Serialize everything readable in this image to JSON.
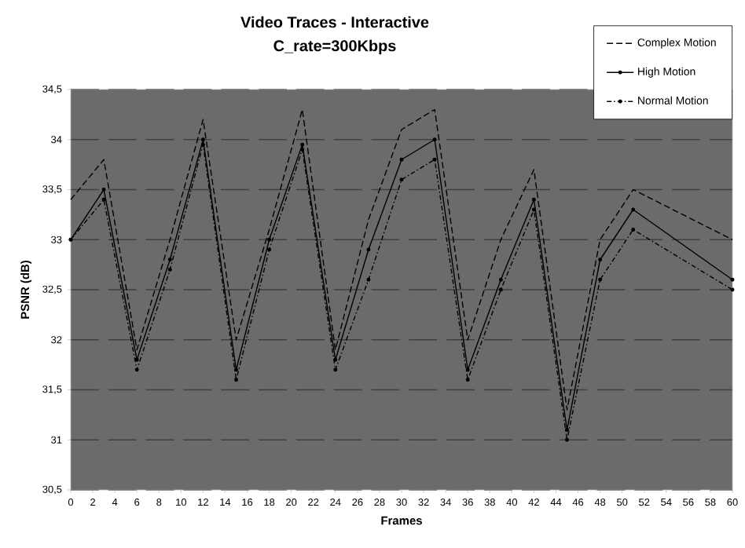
{
  "chart_data": {
    "type": "line",
    "title": "Video Traces - Interactive",
    "subtitle": "C_rate=300Kbps",
    "xlabel": "Frames",
    "ylabel": "PSNR (dB)",
    "x": [
      0,
      3,
      6,
      9,
      12,
      15,
      18,
      21,
      24,
      27,
      30,
      33,
      36,
      39,
      42,
      45,
      48,
      51,
      60
    ],
    "series": [
      {
        "name": "Complex Motion",
        "color": "#000000",
        "line_style": "dashed",
        "marker": "none",
        "values": [
          33.4,
          33.8,
          31.9,
          33.0,
          34.2,
          32.0,
          33.1,
          34.3,
          31.9,
          33.2,
          34.1,
          34.3,
          32.0,
          33.0,
          33.7,
          31.3,
          33.0,
          33.5,
          33.0
        ]
      },
      {
        "name": "High Motion",
        "color": "#000000",
        "line_style": "solid",
        "marker": "circle",
        "values": [
          33.0,
          33.5,
          31.8,
          32.8,
          34.0,
          31.7,
          33.0,
          33.95,
          31.8,
          32.9,
          33.8,
          34.0,
          31.7,
          32.6,
          33.4,
          31.1,
          32.8,
          33.3,
          32.6
        ]
      },
      {
        "name": "Normal Motion",
        "color": "#000000",
        "line_style": "dashdotted",
        "marker": "circle",
        "values": [
          33.0,
          33.4,
          31.7,
          32.7,
          33.95,
          31.6,
          32.9,
          33.9,
          31.7,
          32.6,
          33.6,
          33.8,
          31.6,
          32.5,
          33.3,
          31.0,
          32.6,
          33.1,
          32.5
        ]
      }
    ],
    "xlim": [
      0,
      60
    ],
    "ylim": [
      30.5,
      34.5
    ],
    "xticks": [
      0,
      2,
      4,
      6,
      8,
      10,
      12,
      14,
      16,
      18,
      20,
      22,
      24,
      26,
      28,
      30,
      32,
      34,
      36,
      38,
      40,
      42,
      44,
      46,
      48,
      50,
      52,
      54,
      56,
      58,
      60
    ],
    "yticks": [
      {
        "value": 30.5,
        "label": "30,5"
      },
      {
        "value": 31,
        "label": "31"
      },
      {
        "value": 31.5,
        "label": "31,5"
      },
      {
        "value": 32,
        "label": "32"
      },
      {
        "value": 32.5,
        "label": "32,5"
      },
      {
        "value": 33,
        "label": "33"
      },
      {
        "value": 33.5,
        "label": "33,5"
      },
      {
        "value": 34,
        "label": "34"
      },
      {
        "value": 34.5,
        "label": "34,5"
      }
    ],
    "grid": "y",
    "legend": "top right"
  }
}
